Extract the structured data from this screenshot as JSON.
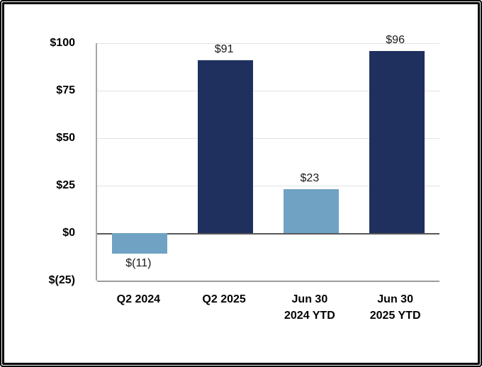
{
  "chart_data": {
    "type": "bar",
    "title": "",
    "xlabel": "",
    "ylabel": "",
    "categories": [
      "Q2 2024",
      "Q2 2025",
      "Jun 30\n2024 YTD",
      "Jun 30\n2025 YTD"
    ],
    "values": [
      -11,
      91,
      23,
      96
    ],
    "data_labels": [
      "$(11)",
      "$91",
      "$23",
      "$96"
    ],
    "bar_colors": [
      "#6FA2C3",
      "#1F305E",
      "#6FA2C3",
      "#1F305E"
    ],
    "series_color_map": {
      "2024_periods": "#6FA2C3",
      "2025_periods": "#1F305E"
    },
    "ylim": [
      -25,
      100
    ],
    "y_ticks": [
      {
        "value": 100,
        "label": "$100"
      },
      {
        "value": 75,
        "label": "$75"
      },
      {
        "value": 50,
        "label": "$50"
      },
      {
        "value": 25,
        "label": "$25"
      },
      {
        "value": 0,
        "label": "$0"
      },
      {
        "value": -25,
        "label": "$(25)"
      }
    ],
    "grid": "horizontal",
    "legend": "none",
    "background": "#FFFFFF"
  }
}
